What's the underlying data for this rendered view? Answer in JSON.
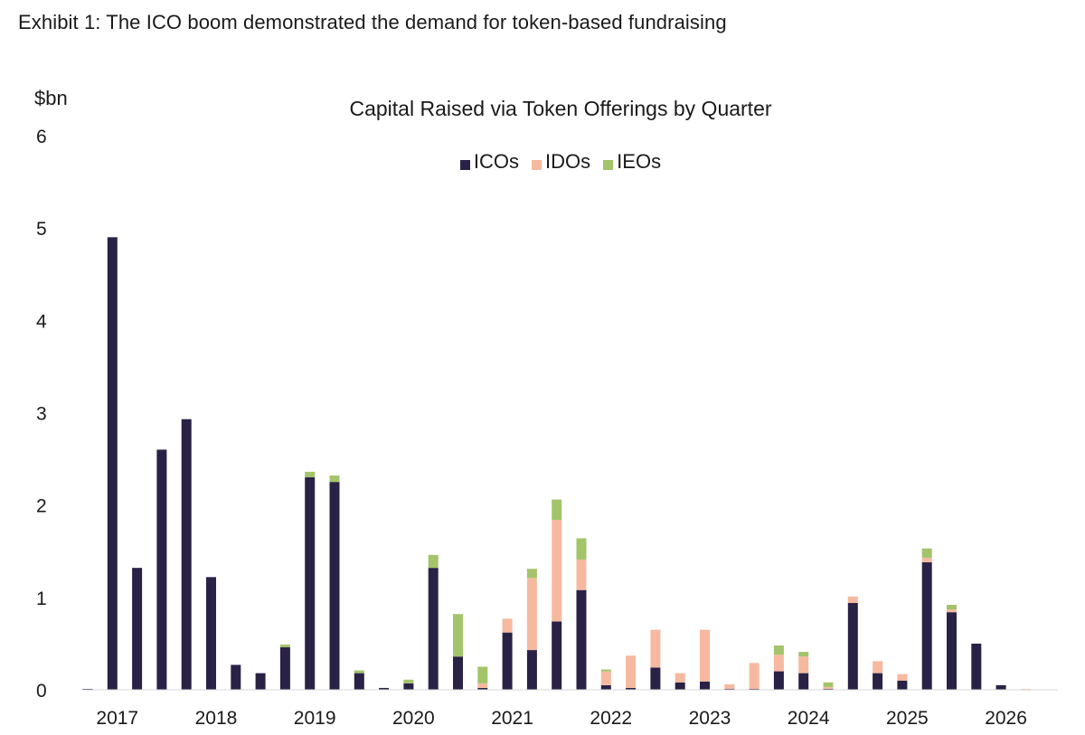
{
  "header": {
    "exhibit_title": "Exhibit 1: The ICO boom demonstrated the demand for token-based fundraising"
  },
  "chart_data": {
    "type": "bar",
    "stacked": true,
    "title": "Capital Raised via Token Offerings by Quarter",
    "ylabel": "$bn",
    "xlabel": "",
    "ylim": [
      0,
      6
    ],
    "yticks": [
      0,
      1,
      2,
      3,
      4,
      5,
      6
    ],
    "year_labels": [
      "2017",
      "2018",
      "2019",
      "2020",
      "2021",
      "2022",
      "2023",
      "2024",
      "2025",
      "2026"
    ],
    "quarters_per_year": 4,
    "legend_position": "top-center",
    "grid": false,
    "series": [
      {
        "name": "ICOs",
        "color": "#2a2146",
        "values": [
          0.01,
          4.9,
          1.32,
          2.6,
          2.93,
          1.22,
          0.27,
          0.18,
          0.46,
          2.3,
          2.25,
          0.18,
          0.02,
          0.07,
          1.32,
          0.36,
          0.02,
          0.62,
          0.43,
          0.74,
          1.08,
          0.05,
          0.02,
          0.24,
          0.08,
          0.09,
          0.01,
          0.01,
          0.2,
          0.18,
          0.01,
          0.94,
          0.18,
          0.1,
          1.38,
          0.84,
          0.5,
          0.05,
          0.0
        ]
      },
      {
        "name": "IDOs",
        "color": "#f6b9a0",
        "values": [
          0.0,
          0.0,
          0.0,
          0.0,
          0.0,
          0.0,
          0.0,
          0.0,
          0.0,
          0.0,
          0.0,
          0.0,
          0.0,
          0.0,
          0.0,
          0.0,
          0.05,
          0.15,
          0.78,
          1.1,
          0.33,
          0.15,
          0.35,
          0.41,
          0.1,
          0.56,
          0.05,
          0.28,
          0.18,
          0.18,
          0.02,
          0.07,
          0.13,
          0.07,
          0.05,
          0.03,
          0.0,
          0.0,
          0.01
        ]
      },
      {
        "name": "IEOs",
        "color": "#a3c46a",
        "values": [
          0.0,
          0.0,
          0.0,
          0.0,
          0.0,
          0.0,
          0.0,
          0.0,
          0.03,
          0.06,
          0.07,
          0.03,
          0.0,
          0.04,
          0.14,
          0.46,
          0.18,
          0.0,
          0.1,
          0.22,
          0.23,
          0.02,
          0.0,
          0.0,
          0.0,
          0.0,
          0.0,
          0.0,
          0.1,
          0.05,
          0.05,
          0.0,
          0.0,
          0.0,
          0.1,
          0.05,
          0.0,
          0.0,
          0.0
        ]
      }
    ]
  }
}
